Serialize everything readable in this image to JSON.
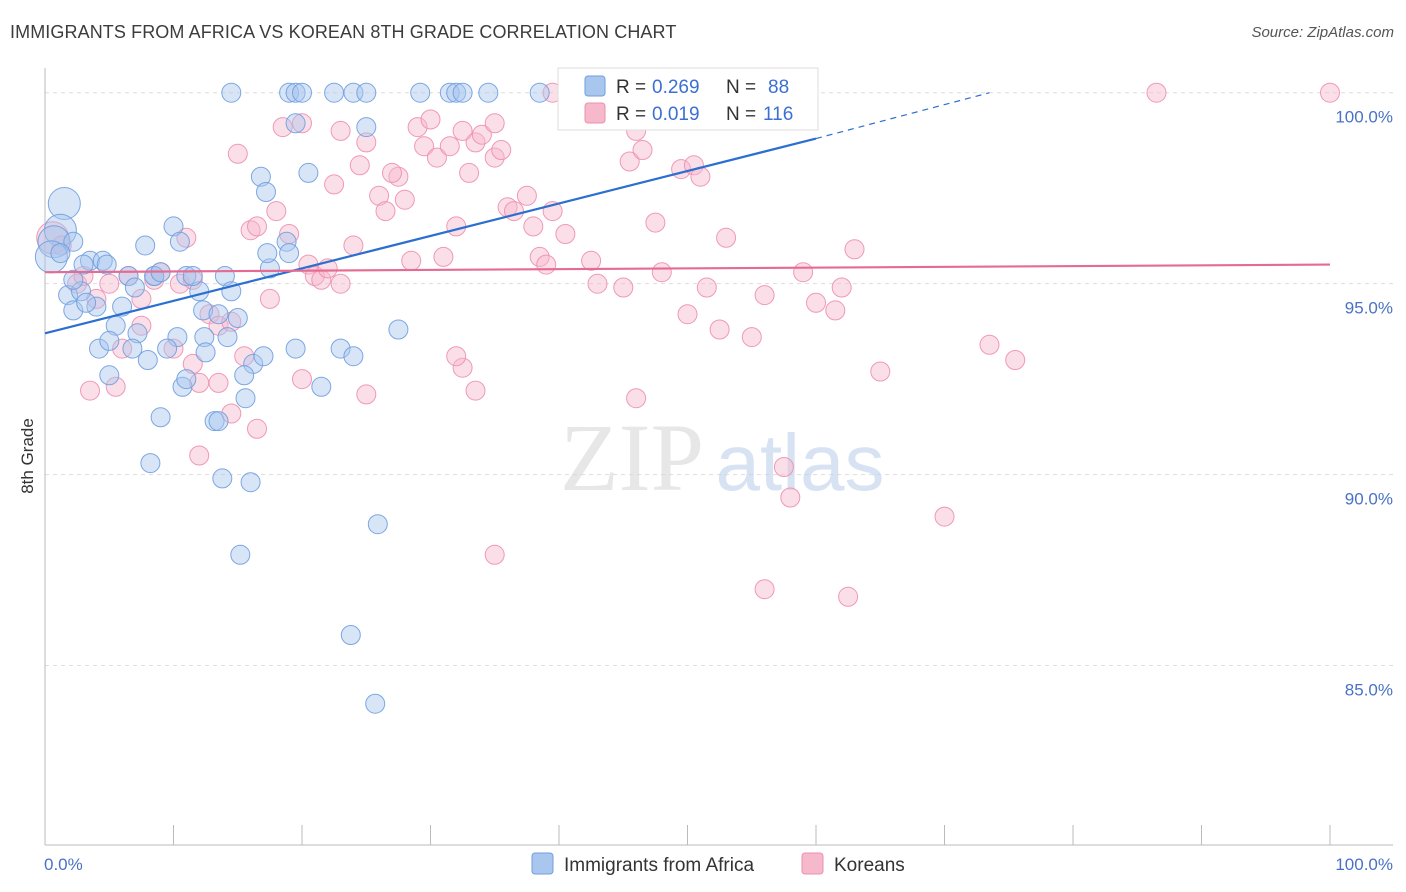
{
  "title": "IMMIGRANTS FROM AFRICA VS KOREAN 8TH GRADE CORRELATION CHART",
  "source": "Source: ZipAtlas.com",
  "watermark": {
    "zip": "ZIP",
    "atlas": "atlas"
  },
  "colors": {
    "africa_fill": "#a9c6ee",
    "africa_stroke": "#6f9fdf",
    "africa_line": "#2b6fd0",
    "korean_fill": "#f6b8cb",
    "korean_stroke": "#ee8fae",
    "korean_line": "#e56b93",
    "grid": "#dddddd",
    "tick_label": "#4a72c4"
  },
  "legend": {
    "africa": {
      "r_label": "R =",
      "r_value": "0.269",
      "n_label": "N =",
      "n_value": "88"
    },
    "korean": {
      "r_label": "R =",
      "r_value": "0.019",
      "n_label": "N =",
      "n_value": "116"
    }
  },
  "chart_data": {
    "type": "scatter",
    "xlabel": "",
    "ylabel": "8th Grade",
    "xlim": [
      0,
      100
    ],
    "ylim": [
      80.3,
      100.7
    ],
    "x_tick_labels": [
      "0.0%",
      "100.0%"
    ],
    "y_ticks": [
      85,
      90,
      95,
      100
    ],
    "y_tick_labels": [
      "85.0%",
      "90.0%",
      "95.0%",
      "100.0%"
    ],
    "grid": "horizontal dashed",
    "legend_placement": "top-center",
    "series": [
      {
        "name": "Immigrants from Africa",
        "trend": {
          "x": [
            0,
            60,
            73.5
          ],
          "y": [
            93.7,
            98.8,
            100.0
          ],
          "dashed_after": 60
        },
        "points": [
          [
            1.5,
            97.1,
            2
          ],
          [
            1.2,
            96.4,
            2
          ],
          [
            0.7,
            96.1,
            2
          ],
          [
            0.5,
            95.7,
            2
          ],
          [
            2.2,
            96.1,
            1
          ],
          [
            3.5,
            95.6,
            1
          ],
          [
            4.5,
            95.6,
            1
          ],
          [
            6.5,
            95.2,
            1
          ],
          [
            8.5,
            95.2,
            1
          ],
          [
            10.0,
            96.5,
            1
          ],
          [
            10.5,
            96.1,
            1
          ],
          [
            7.8,
            96.0,
            1
          ],
          [
            1.8,
            94.7,
            1
          ],
          [
            2.2,
            94.3,
            1
          ],
          [
            4.0,
            94.4,
            1
          ],
          [
            6.0,
            94.4,
            1
          ],
          [
            2.8,
            94.8,
            1
          ],
          [
            8.5,
            95.2,
            1
          ],
          [
            9.0,
            95.3,
            1
          ],
          [
            11.0,
            95.2,
            1
          ],
          [
            12.0,
            94.8,
            1
          ],
          [
            12.3,
            94.3,
            1
          ],
          [
            11.5,
            95.2,
            1
          ],
          [
            14.0,
            95.2,
            1
          ],
          [
            14.5,
            94.8,
            1
          ],
          [
            13.5,
            94.2,
            1
          ],
          [
            17.5,
            95.4,
            1
          ],
          [
            17.3,
            95.8,
            1
          ],
          [
            18.8,
            96.1,
            1
          ],
          [
            19.0,
            95.8,
            1
          ],
          [
            16.8,
            97.8,
            1
          ],
          [
            17.2,
            97.4,
            1
          ],
          [
            20.5,
            97.9,
            1
          ],
          [
            7.2,
            93.7,
            1
          ],
          [
            5.5,
            93.9,
            1
          ],
          [
            4.2,
            93.3,
            1
          ],
          [
            6.8,
            93.3,
            1
          ],
          [
            8.0,
            93.0,
            1
          ],
          [
            5.0,
            92.6,
            1
          ],
          [
            10.3,
            93.6,
            1
          ],
          [
            12.4,
            93.6,
            1
          ],
          [
            12.5,
            93.2,
            1
          ],
          [
            14.2,
            93.6,
            1
          ],
          [
            15.0,
            94.1,
            1
          ],
          [
            16.2,
            92.9,
            1
          ],
          [
            17.0,
            93.1,
            1
          ],
          [
            19.5,
            93.3,
            1
          ],
          [
            23.0,
            93.3,
            1
          ],
          [
            24.0,
            93.1,
            1
          ],
          [
            27.5,
            93.8,
            1
          ],
          [
            15.5,
            92.6,
            1
          ],
          [
            15.6,
            92.0,
            1
          ],
          [
            10.7,
            92.3,
            1
          ],
          [
            11.0,
            92.5,
            1
          ],
          [
            21.5,
            92.3,
            1
          ],
          [
            9.0,
            91.5,
            1
          ],
          [
            13.2,
            91.4,
            1
          ],
          [
            13.5,
            91.4,
            1
          ],
          [
            8.2,
            90.3,
            1
          ],
          [
            13.8,
            89.9,
            1
          ],
          [
            16.0,
            89.8,
            1
          ],
          [
            25.9,
            88.7,
            1
          ],
          [
            15.2,
            87.9,
            1
          ],
          [
            23.8,
            85.8,
            1
          ],
          [
            25.7,
            84.0,
            1
          ],
          [
            14.5,
            100.0,
            1
          ],
          [
            19.0,
            100.0,
            1
          ],
          [
            19.5,
            100.0,
            1
          ],
          [
            20.0,
            100.0,
            1
          ],
          [
            22.5,
            100.0,
            1
          ],
          [
            24.0,
            100.0,
            1
          ],
          [
            25.0,
            100.0,
            1
          ],
          [
            29.2,
            100.0,
            1
          ],
          [
            31.5,
            100.0,
            1
          ],
          [
            32.0,
            100.0,
            1
          ],
          [
            32.5,
            100.0,
            1
          ],
          [
            34.5,
            100.0,
            1
          ],
          [
            38.5,
            100.0,
            1
          ],
          [
            19.5,
            99.2,
            1
          ],
          [
            25.0,
            99.1,
            1
          ],
          [
            2.2,
            95.1,
            1
          ],
          [
            4.8,
            95.5,
            1
          ],
          [
            3.0,
            95.5,
            1
          ],
          [
            7.0,
            94.9,
            1
          ],
          [
            3.2,
            94.5,
            1
          ],
          [
            1.2,
            95.8,
            1
          ],
          [
            5.0,
            93.5,
            1
          ],
          [
            9.5,
            93.3,
            1
          ]
        ]
      },
      {
        "name": "Koreans",
        "trend": {
          "x": [
            0,
            100
          ],
          "y": [
            95.3,
            95.5
          ]
        },
        "points": [
          [
            0.6,
            96.2,
            2
          ],
          [
            1.3,
            96.0,
            1
          ],
          [
            2.5,
            95.0,
            1
          ],
          [
            3.0,
            95.2,
            1
          ],
          [
            4.0,
            94.6,
            1
          ],
          [
            5.0,
            95.0,
            1
          ],
          [
            6.5,
            95.2,
            1
          ],
          [
            7.5,
            94.6,
            1
          ],
          [
            8.5,
            95.1,
            1
          ],
          [
            9.0,
            95.3,
            1
          ],
          [
            10.5,
            95.0,
            1
          ],
          [
            11.0,
            96.2,
            1
          ],
          [
            11.5,
            95.1,
            1
          ],
          [
            6.0,
            93.3,
            1
          ],
          [
            7.5,
            93.9,
            1
          ],
          [
            10.0,
            93.3,
            1
          ],
          [
            11.5,
            92.9,
            1
          ],
          [
            12.8,
            94.2,
            1
          ],
          [
            13.5,
            93.9,
            1
          ],
          [
            14.5,
            94.0,
            1
          ],
          [
            15.5,
            93.1,
            1
          ],
          [
            16.0,
            96.4,
            1
          ],
          [
            16.5,
            96.5,
            1
          ],
          [
            17.5,
            94.6,
            1
          ],
          [
            18.0,
            96.9,
            1
          ],
          [
            19.0,
            96.3,
            1
          ],
          [
            20.5,
            95.5,
            1
          ],
          [
            21.0,
            95.2,
            1
          ],
          [
            21.5,
            95.1,
            1
          ],
          [
            22.0,
            95.4,
            1
          ],
          [
            23.0,
            95.0,
            1
          ],
          [
            24.0,
            96.0,
            1
          ],
          [
            24.5,
            98.1,
            1
          ],
          [
            22.5,
            97.6,
            1
          ],
          [
            25.0,
            98.7,
            1
          ],
          [
            26.0,
            97.3,
            1
          ],
          [
            26.5,
            96.9,
            1
          ],
          [
            27.5,
            97.8,
            1
          ],
          [
            27.0,
            97.9,
            1
          ],
          [
            28.0,
            97.2,
            1
          ],
          [
            28.5,
            95.6,
            1
          ],
          [
            29.0,
            99.1,
            1
          ],
          [
            29.5,
            98.6,
            1
          ],
          [
            30.5,
            98.3,
            1
          ],
          [
            31.0,
            95.7,
            1
          ],
          [
            31.5,
            98.6,
            1
          ],
          [
            32.0,
            96.5,
            1
          ],
          [
            33.0,
            97.9,
            1
          ],
          [
            33.5,
            98.7,
            1
          ],
          [
            34.0,
            98.9,
            1
          ],
          [
            35.0,
            98.3,
            1
          ],
          [
            35.5,
            98.5,
            1
          ],
          [
            36.0,
            97.0,
            1
          ],
          [
            36.5,
            96.9,
            1
          ],
          [
            37.5,
            97.3,
            1
          ],
          [
            38.0,
            96.5,
            1
          ],
          [
            38.5,
            95.7,
            1
          ],
          [
            39.0,
            95.5,
            1
          ],
          [
            39.5,
            96.9,
            1
          ],
          [
            40.5,
            96.3,
            1
          ],
          [
            42.5,
            95.6,
            1
          ],
          [
            43.0,
            95.0,
            1
          ],
          [
            45.0,
            94.9,
            1
          ],
          [
            45.5,
            98.2,
            1
          ],
          [
            46.0,
            92.0,
            1
          ],
          [
            47.5,
            96.6,
            1
          ],
          [
            48.0,
            95.3,
            1
          ],
          [
            49.5,
            98.0,
            1
          ],
          [
            50.5,
            98.1,
            1
          ],
          [
            51.0,
            97.8,
            1
          ],
          [
            50.0,
            94.2,
            1
          ],
          [
            51.5,
            94.9,
            1
          ],
          [
            52.5,
            93.8,
            1
          ],
          [
            53.0,
            96.2,
            1
          ],
          [
            55.0,
            93.6,
            1
          ],
          [
            56.0,
            94.7,
            1
          ],
          [
            57.5,
            90.2,
            1
          ],
          [
            58.0,
            89.4,
            1
          ],
          [
            59.0,
            95.3,
            1
          ],
          [
            60.0,
            94.5,
            1
          ],
          [
            61.5,
            94.3,
            1
          ],
          [
            62.0,
            94.9,
            1
          ],
          [
            63.0,
            95.9,
            1
          ],
          [
            65.0,
            92.7,
            1
          ],
          [
            70.0,
            88.9,
            1
          ],
          [
            73.5,
            93.4,
            1
          ],
          [
            75.5,
            93.0,
            1
          ],
          [
            56.0,
            87.0,
            1
          ],
          [
            62.5,
            86.8,
            1
          ],
          [
            35.0,
            87.9,
            1
          ],
          [
            33.5,
            92.2,
            1
          ],
          [
            32.5,
            92.8,
            1
          ],
          [
            32.0,
            93.1,
            1
          ],
          [
            25.0,
            92.1,
            1
          ],
          [
            20.0,
            92.5,
            1
          ],
          [
            12.0,
            92.4,
            1
          ],
          [
            13.5,
            92.4,
            1
          ],
          [
            12.0,
            90.5,
            1
          ],
          [
            16.5,
            91.2,
            1
          ],
          [
            14.5,
            91.6,
            1
          ],
          [
            5.5,
            92.3,
            1
          ],
          [
            3.5,
            92.2,
            1
          ],
          [
            15.0,
            98.4,
            1
          ],
          [
            20.0,
            99.2,
            1
          ],
          [
            23.0,
            99.0,
            1
          ],
          [
            32.5,
            99.0,
            1
          ],
          [
            46.0,
            99.0,
            1
          ],
          [
            39.5,
            100.0,
            1
          ],
          [
            86.5,
            100.0,
            1
          ],
          [
            100.0,
            100.0,
            1
          ],
          [
            48.0,
            99.5,
            1
          ],
          [
            51.0,
            99.6,
            1
          ],
          [
            35.0,
            99.2,
            1
          ],
          [
            30.0,
            99.3,
            1
          ],
          [
            18.5,
            99.1,
            1
          ],
          [
            46.5,
            98.5,
            1
          ]
        ]
      }
    ]
  },
  "bottom_legend": {
    "africa_label": "Immigrants from Africa",
    "korean_label": "Koreans"
  }
}
